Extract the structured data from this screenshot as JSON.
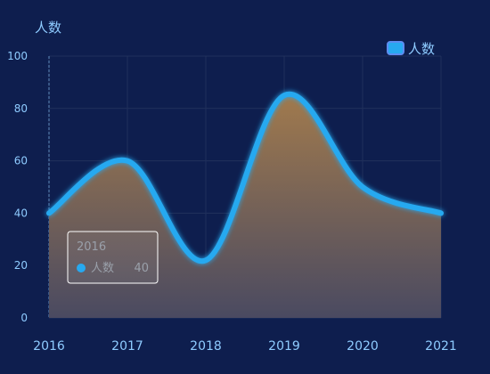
{
  "chart_data": {
    "type": "area",
    "ylabel": "人数",
    "ylim": [
      0,
      100
    ],
    "y_ticks": [
      0,
      20,
      40,
      60,
      80,
      100
    ],
    "categories": [
      "2016",
      "2017",
      "2018",
      "2019",
      "2020",
      "2021"
    ],
    "series": [
      {
        "name": "人数",
        "values": [
          40,
          60,
          22,
          85,
          50,
          40
        ]
      }
    ],
    "legend": {
      "position": "top-right",
      "label": "人数"
    },
    "grid": true,
    "tooltip": {
      "title": "2016",
      "series_name": "人数",
      "value": "40"
    }
  },
  "colors": {
    "background": "#0e1e4e",
    "line": "#27a9f0",
    "area_top": "#a17a4d",
    "area_bottom": "#4a4a61",
    "axis_text": "#8ecbff",
    "grid": "#20305c",
    "tooltip_bg": "#ffffff",
    "tooltip_text": "#9aa0aa"
  }
}
